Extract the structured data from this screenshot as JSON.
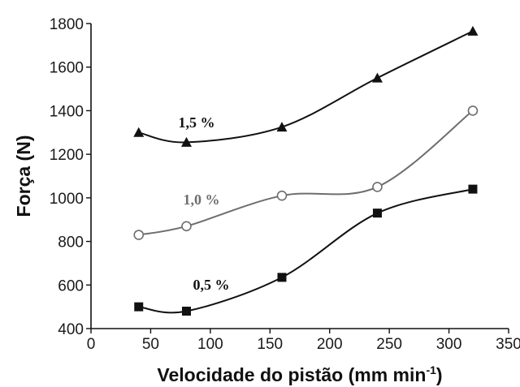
{
  "chart_data": {
    "type": "scatter",
    "xlabel": "Velocidade do pistão (mm min",
    "xlabel_superscript": "-1",
    "xlabel_suffix": ")",
    "ylabel": "Força (N)",
    "xlim": [
      0,
      350
    ],
    "ylim": [
      400,
      1800
    ],
    "x_ticks": [
      "0",
      "50",
      "100",
      "150",
      "200",
      "250",
      "300",
      "350"
    ],
    "y_ticks": [
      "400",
      "600",
      "800",
      "1000",
      "1200",
      "1400",
      "1600",
      "1800"
    ],
    "grid": false,
    "series": [
      {
        "name": "0,5 %",
        "marker": "square-filled",
        "color": "#111111",
        "x": [
          40,
          80,
          160,
          240,
          320
        ],
        "y": [
          500,
          480,
          635,
          930,
          1040
        ]
      },
      {
        "name": "1,0 %",
        "marker": "circle-open",
        "color": "#6e6e6e",
        "x": [
          40,
          80,
          160,
          240,
          320
        ],
        "y": [
          830,
          870,
          1010,
          1050,
          1400
        ]
      },
      {
        "name": "1,5 %",
        "marker": "triangle-filled",
        "color": "#111111",
        "x": [
          40,
          80,
          160,
          240,
          320
        ],
        "y": [
          1300,
          1255,
          1325,
          1550,
          1765
        ]
      }
    ]
  }
}
